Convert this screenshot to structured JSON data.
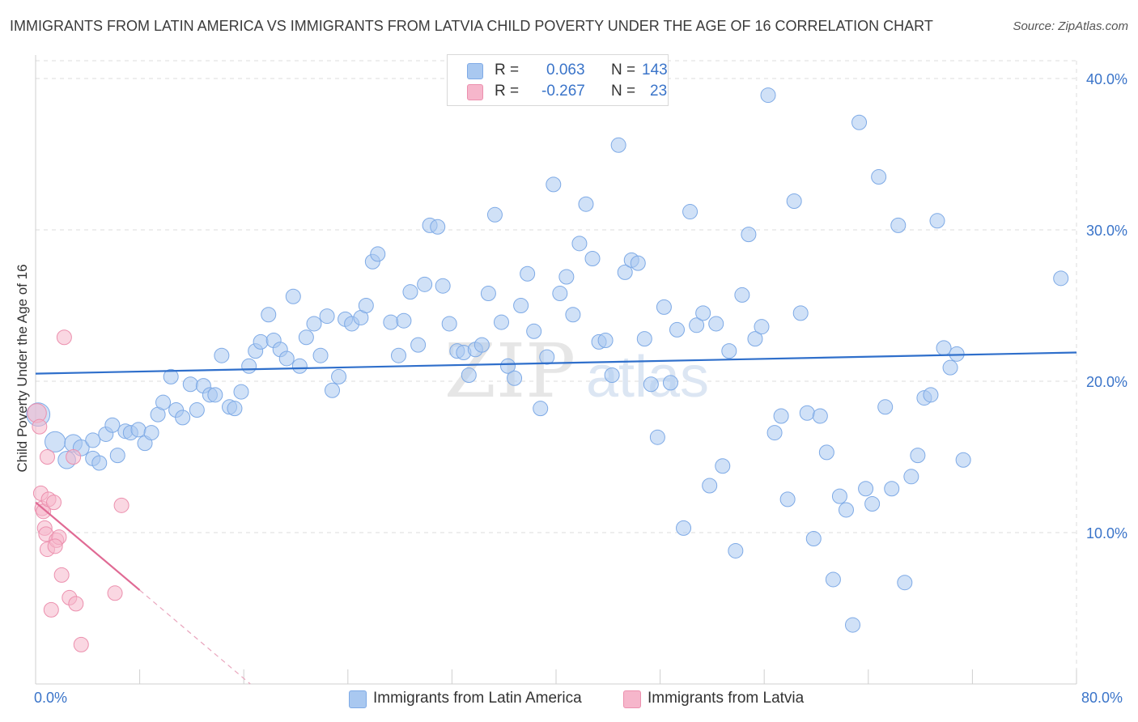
{
  "title": "IMMIGRANTS FROM LATIN AMERICA VS IMMIGRANTS FROM LATVIA CHILD POVERTY UNDER THE AGE OF 16 CORRELATION CHART",
  "source": "Source: ZipAtlas.com",
  "watermark": {
    "zip": "ZIP",
    "atlas": "atlas"
  },
  "legend": {
    "r_label": "R =",
    "n_label": "N =",
    "series": [
      {
        "r": "0.063",
        "n": "143"
      },
      {
        "r": "-0.267",
        "n": "23"
      }
    ]
  },
  "colors": {
    "blue_fill": "#a9c8f0",
    "blue_stroke": "#7eaae6",
    "blue_line": "#2f6fcb",
    "pink_fill": "#f6b6cb",
    "pink_stroke": "#ec90ae",
    "pink_line": "#e06a94",
    "axis_text": "#3a74c9",
    "grid": "#dcdcdc"
  },
  "chart_data": {
    "type": "scatter",
    "xlabel": "",
    "ylabel": "Child Poverty Under the Age of 16",
    "xlim": [
      0,
      80
    ],
    "ylim": [
      0,
      40
    ],
    "y_ticks": [
      "10.0%",
      "20.0%",
      "30.0%",
      "40.0%"
    ],
    "y_tick_values": [
      10,
      20,
      30,
      40
    ],
    "x_ticks": [
      "0.0%",
      "80.0%"
    ],
    "series": [
      {
        "name": "Immigrants from Latin America",
        "color": "#a9c8f0",
        "trend": {
          "x": [
            0,
            80
          ],
          "y": [
            20.5,
            21.9
          ]
        },
        "points": [
          [
            0.2,
            17.8,
            1.6
          ],
          [
            1.5,
            16.0,
            1.4
          ],
          [
            2.4,
            14.8,
            1.2
          ],
          [
            2.9,
            15.9,
            1.2
          ],
          [
            3.5,
            15.6,
            1.1
          ],
          [
            4.4,
            16.1,
            1.0
          ],
          [
            4.4,
            14.9,
            1.0
          ],
          [
            4.9,
            14.6,
            1.0
          ],
          [
            5.4,
            16.5,
            1.0
          ],
          [
            5.9,
            17.1,
            1.0
          ],
          [
            6.3,
            15.1,
            1.0
          ],
          [
            6.9,
            16.7,
            1.0
          ],
          [
            7.3,
            16.6,
            1.0
          ],
          [
            7.9,
            16.8,
            1.0
          ],
          [
            8.4,
            15.9,
            1.0
          ],
          [
            8.9,
            16.6,
            1.0
          ],
          [
            9.4,
            17.8,
            1.0
          ],
          [
            9.8,
            18.6,
            1.0
          ],
          [
            10.4,
            20.3,
            1.0
          ],
          [
            10.8,
            18.1,
            1.0
          ],
          [
            11.3,
            17.6,
            1.0
          ],
          [
            11.9,
            19.8,
            1.0
          ],
          [
            12.4,
            18.1,
            1.0
          ],
          [
            12.9,
            19.7,
            1.0
          ],
          [
            13.4,
            19.1,
            1.0
          ],
          [
            13.8,
            19.1,
            1.0
          ],
          [
            14.3,
            21.7,
            1.0
          ],
          [
            14.9,
            18.3,
            1.0
          ],
          [
            15.3,
            18.2,
            1.0
          ],
          [
            15.8,
            19.3,
            1.0
          ],
          [
            16.4,
            21.0,
            1.0
          ],
          [
            16.9,
            22.0,
            1.0
          ],
          [
            17.3,
            22.6,
            1.0
          ],
          [
            17.9,
            24.4,
            1.0
          ],
          [
            18.3,
            22.7,
            1.0
          ],
          [
            18.8,
            22.1,
            1.0
          ],
          [
            19.3,
            21.5,
            1.0
          ],
          [
            19.8,
            25.6,
            1.0
          ],
          [
            20.3,
            21.0,
            1.0
          ],
          [
            20.8,
            22.9,
            1.0
          ],
          [
            21.4,
            23.8,
            1.0
          ],
          [
            21.9,
            21.7,
            1.0
          ],
          [
            22.4,
            24.3,
            1.0
          ],
          [
            22.8,
            19.4,
            1.0
          ],
          [
            23.3,
            20.3,
            1.0
          ],
          [
            23.8,
            24.1,
            1.0
          ],
          [
            24.3,
            23.8,
            1.0
          ],
          [
            25.0,
            24.2,
            1.0
          ],
          [
            25.4,
            25.0,
            1.0
          ],
          [
            25.9,
            27.9,
            1.0
          ],
          [
            26.3,
            28.4,
            1.0
          ],
          [
            27.3,
            23.9,
            1.0
          ],
          [
            27.9,
            21.7,
            1.0
          ],
          [
            28.3,
            24.0,
            1.0
          ],
          [
            28.8,
            25.9,
            1.0
          ],
          [
            29.4,
            22.4,
            1.0
          ],
          [
            29.9,
            26.4,
            1.0
          ],
          [
            30.3,
            30.3,
            1.0
          ],
          [
            30.9,
            30.2,
            1.0
          ],
          [
            31.3,
            26.3,
            1.0
          ],
          [
            31.8,
            23.8,
            1.0
          ],
          [
            32.4,
            22.0,
            1.0
          ],
          [
            32.9,
            21.9,
            1.0
          ],
          [
            33.3,
            20.4,
            1.0
          ],
          [
            33.8,
            22.1,
            1.0
          ],
          [
            34.3,
            22.4,
            1.0
          ],
          [
            34.8,
            25.8,
            1.0
          ],
          [
            35.3,
            31.0,
            1.0
          ],
          [
            35.8,
            23.9,
            1.0
          ],
          [
            36.3,
            21.0,
            1.0
          ],
          [
            36.8,
            20.2,
            1.0
          ],
          [
            37.3,
            25.0,
            1.0
          ],
          [
            37.8,
            27.1,
            1.0
          ],
          [
            38.3,
            23.3,
            1.0
          ],
          [
            38.8,
            18.2,
            1.0
          ],
          [
            39.3,
            21.6,
            1.0
          ],
          [
            39.8,
            33.0,
            1.0
          ],
          [
            40.3,
            25.8,
            1.0
          ],
          [
            40.8,
            26.9,
            1.0
          ],
          [
            41.3,
            24.4,
            1.0
          ],
          [
            41.8,
            29.1,
            1.0
          ],
          [
            42.3,
            31.7,
            1.0
          ],
          [
            42.8,
            28.1,
            1.0
          ],
          [
            43.3,
            22.6,
            1.0
          ],
          [
            43.8,
            22.7,
            1.0
          ],
          [
            44.3,
            20.4,
            1.0
          ],
          [
            44.8,
            35.6,
            1.0
          ],
          [
            45.3,
            27.2,
            1.0
          ],
          [
            45.8,
            28.0,
            1.0
          ],
          [
            46.3,
            27.8,
            1.0
          ],
          [
            46.8,
            22.8,
            1.0
          ],
          [
            47.3,
            19.8,
            1.0
          ],
          [
            47.8,
            16.3,
            1.0
          ],
          [
            48.3,
            24.9,
            1.0
          ],
          [
            48.8,
            19.9,
            1.0
          ],
          [
            49.3,
            23.4,
            1.0
          ],
          [
            49.8,
            10.3,
            1.0
          ],
          [
            50.3,
            31.2,
            1.0
          ],
          [
            50.8,
            23.7,
            1.0
          ],
          [
            51.3,
            24.5,
            1.0
          ],
          [
            51.8,
            13.1,
            1.0
          ],
          [
            52.3,
            23.8,
            1.0
          ],
          [
            52.8,
            14.4,
            1.0
          ],
          [
            53.3,
            22.0,
            1.0
          ],
          [
            53.8,
            8.8,
            1.0
          ],
          [
            54.3,
            25.7,
            1.0
          ],
          [
            54.8,
            29.7,
            1.0
          ],
          [
            55.3,
            22.8,
            1.0
          ],
          [
            55.8,
            23.6,
            1.0
          ],
          [
            56.3,
            38.9,
            1.0
          ],
          [
            56.8,
            16.6,
            1.0
          ],
          [
            57.3,
            17.7,
            1.0
          ],
          [
            57.8,
            12.2,
            1.0
          ],
          [
            58.3,
            31.9,
            1.0
          ],
          [
            58.8,
            24.5,
            1.0
          ],
          [
            59.3,
            17.9,
            1.0
          ],
          [
            59.8,
            9.6,
            1.0
          ],
          [
            60.3,
            17.7,
            1.0
          ],
          [
            60.8,
            15.3,
            1.0
          ],
          [
            61.3,
            6.9,
            1.0
          ],
          [
            61.8,
            12.4,
            1.0
          ],
          [
            62.3,
            11.5,
            1.0
          ],
          [
            62.8,
            3.9,
            1.0
          ],
          [
            63.3,
            37.1,
            1.0
          ],
          [
            63.8,
            12.9,
            1.0
          ],
          [
            64.3,
            11.9,
            1.0
          ],
          [
            64.8,
            33.5,
            1.0
          ],
          [
            65.3,
            18.3,
            1.0
          ],
          [
            65.8,
            12.9,
            1.0
          ],
          [
            66.3,
            30.3,
            1.0
          ],
          [
            66.8,
            6.7,
            1.0
          ],
          [
            67.3,
            13.7,
            1.0
          ],
          [
            67.8,
            15.1,
            1.0
          ],
          [
            68.3,
            18.9,
            1.0
          ],
          [
            68.8,
            19.1,
            1.0
          ],
          [
            69.3,
            30.6,
            1.0
          ],
          [
            69.8,
            22.2,
            1.0
          ],
          [
            70.3,
            20.9,
            1.0
          ],
          [
            70.8,
            21.8,
            1.0
          ],
          [
            71.3,
            14.8,
            1.0
          ],
          [
            78.8,
            26.8,
            1.0
          ]
        ]
      },
      {
        "name": "Immigrants from Latvia",
        "color": "#f6b6cb",
        "trend": {
          "x": [
            0,
            8.0
          ],
          "y": [
            12.0,
            6.2
          ]
        },
        "trend_dashed": {
          "x": [
            8.0,
            16.5
          ],
          "y": [
            6.2,
            0.0
          ]
        },
        "points": [
          [
            0.1,
            17.9,
            1.3
          ],
          [
            0.3,
            17.0,
            1.0
          ],
          [
            0.4,
            12.6,
            1.0
          ],
          [
            0.5,
            11.6,
            1.0
          ],
          [
            0.6,
            11.4,
            1.0
          ],
          [
            0.7,
            10.3,
            1.0
          ],
          [
            0.8,
            9.9,
            1.0
          ],
          [
            0.9,
            15.0,
            1.0
          ],
          [
            0.9,
            8.9,
            1.0
          ],
          [
            1.0,
            12.2,
            1.0
          ],
          [
            1.2,
            4.9,
            1.0
          ],
          [
            1.4,
            12.0,
            1.0
          ],
          [
            1.6,
            9.5,
            1.0
          ],
          [
            1.8,
            9.7,
            1.0
          ],
          [
            2.0,
            7.2,
            1.0
          ],
          [
            2.2,
            22.9,
            1.0
          ],
          [
            2.6,
            5.7,
            1.0
          ],
          [
            2.9,
            15.0,
            1.0
          ],
          [
            3.1,
            5.3,
            1.0
          ],
          [
            3.5,
            2.6,
            1.0
          ],
          [
            6.1,
            6.0,
            1.0
          ],
          [
            6.6,
            11.8,
            1.0
          ],
          [
            1.5,
            9.1,
            1.0
          ]
        ]
      }
    ]
  }
}
